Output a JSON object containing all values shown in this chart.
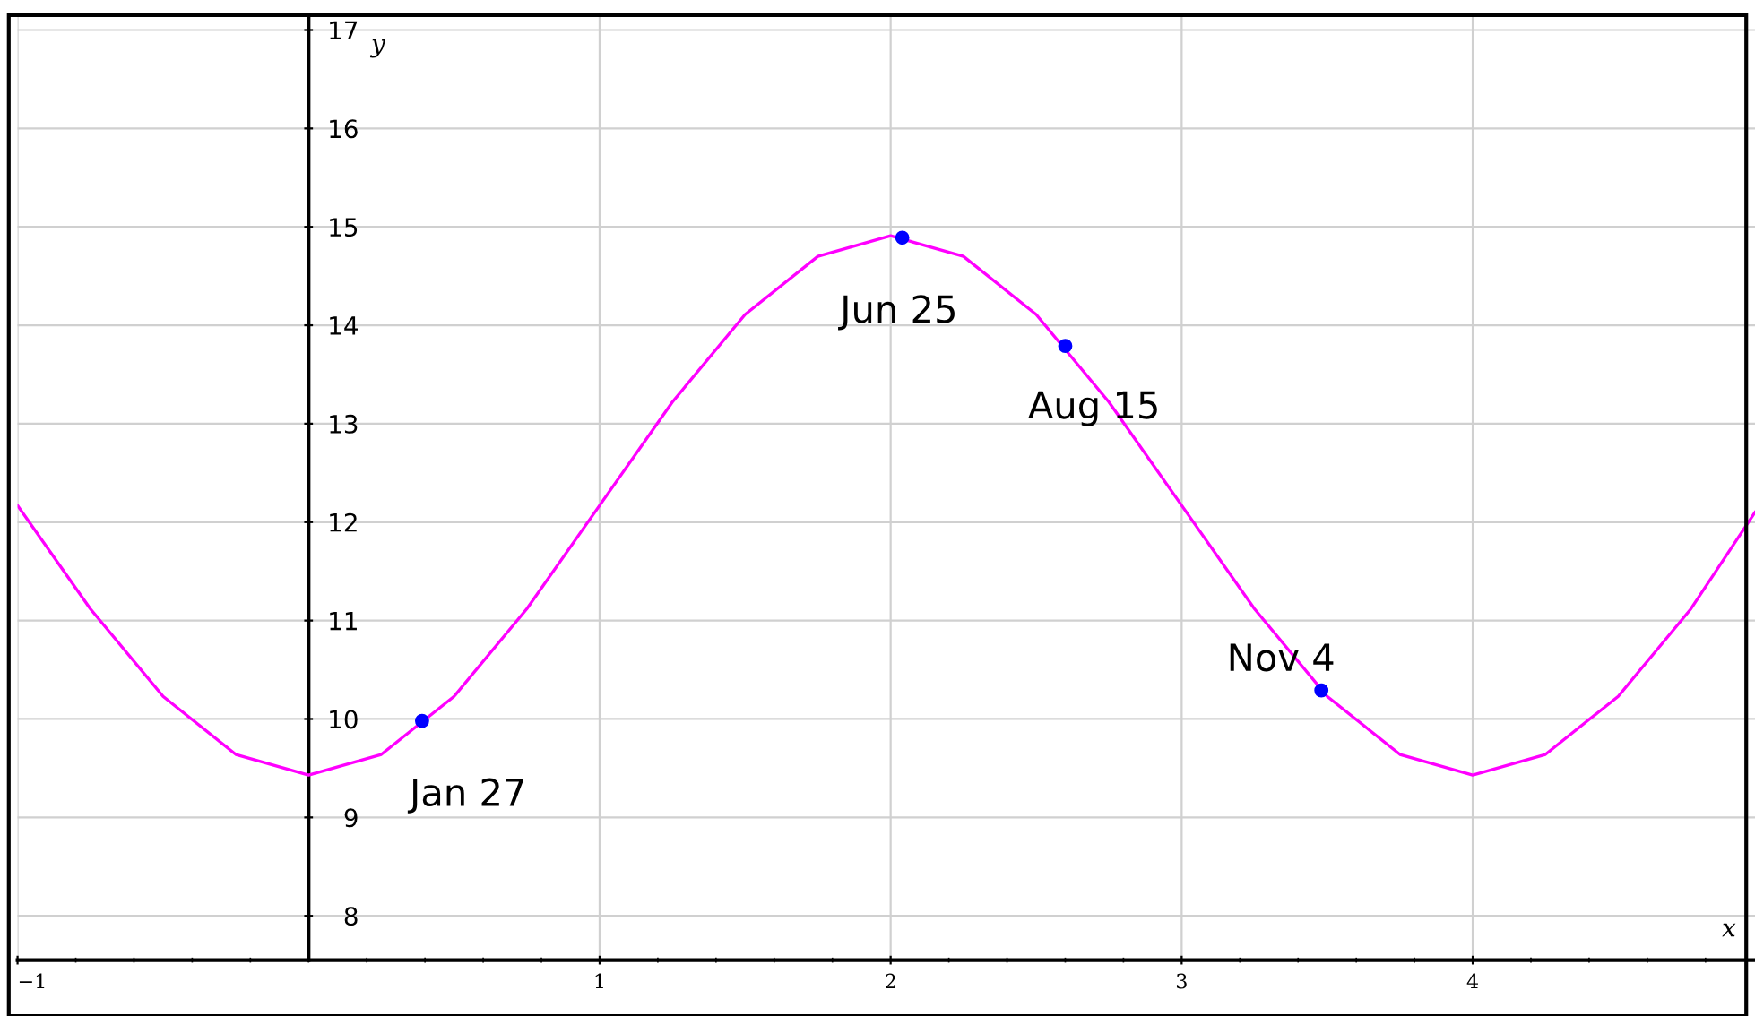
{
  "chart_data": {
    "type": "line",
    "xlabel": "x",
    "ylabel": "y",
    "xlim": [
      -1,
      4.97
    ],
    "ylim": [
      7.55,
      17.15
    ],
    "xticks": [
      {
        "value": -1,
        "label": "−1"
      },
      1,
      2,
      3,
      4
    ],
    "yticks": [
      8,
      9,
      10,
      11,
      12,
      13,
      14,
      15,
      16,
      17
    ],
    "grid": true,
    "legend": false,
    "series": [
      {
        "color": "#ff00ff",
        "marker": "none",
        "line_style": "solid",
        "x": [
          -1,
          -0.75,
          -0.5,
          -0.25,
          0,
          0.25,
          0.5,
          0.75,
          1,
          1.25,
          1.5,
          1.75,
          2,
          2.25,
          2.5,
          2.75,
          3,
          3.25,
          3.5,
          3.75,
          4,
          4.25,
          4.5,
          4.75,
          4.97
        ],
        "values": [
          12.17,
          11.12,
          10.23,
          9.64,
          9.43,
          9.64,
          10.23,
          11.12,
          12.17,
          13.22,
          14.11,
          14.7,
          14.91,
          14.7,
          14.11,
          13.22,
          12.17,
          11.12,
          10.23,
          9.64,
          9.43,
          9.64,
          10.23,
          11.12,
          12.1
        ]
      },
      {
        "type": "scatter",
        "color": "#0000ff",
        "marker": "circle",
        "x": [
          0.39,
          2.04,
          2.6,
          3.48
        ],
        "values": [
          9.98,
          14.89,
          13.79,
          10.29
        ]
      }
    ],
    "annotations": [
      {
        "text": "Jan 27",
        "x": 0.39,
        "y": 9.98
      },
      {
        "text": "Jun 25",
        "x": 2.04,
        "y": 14.89
      },
      {
        "text": "Aug 15",
        "x": 2.6,
        "y": 13.79
      },
      {
        "text": "Nov 4",
        "x": 3.48,
        "y": 10.29
      }
    ]
  }
}
